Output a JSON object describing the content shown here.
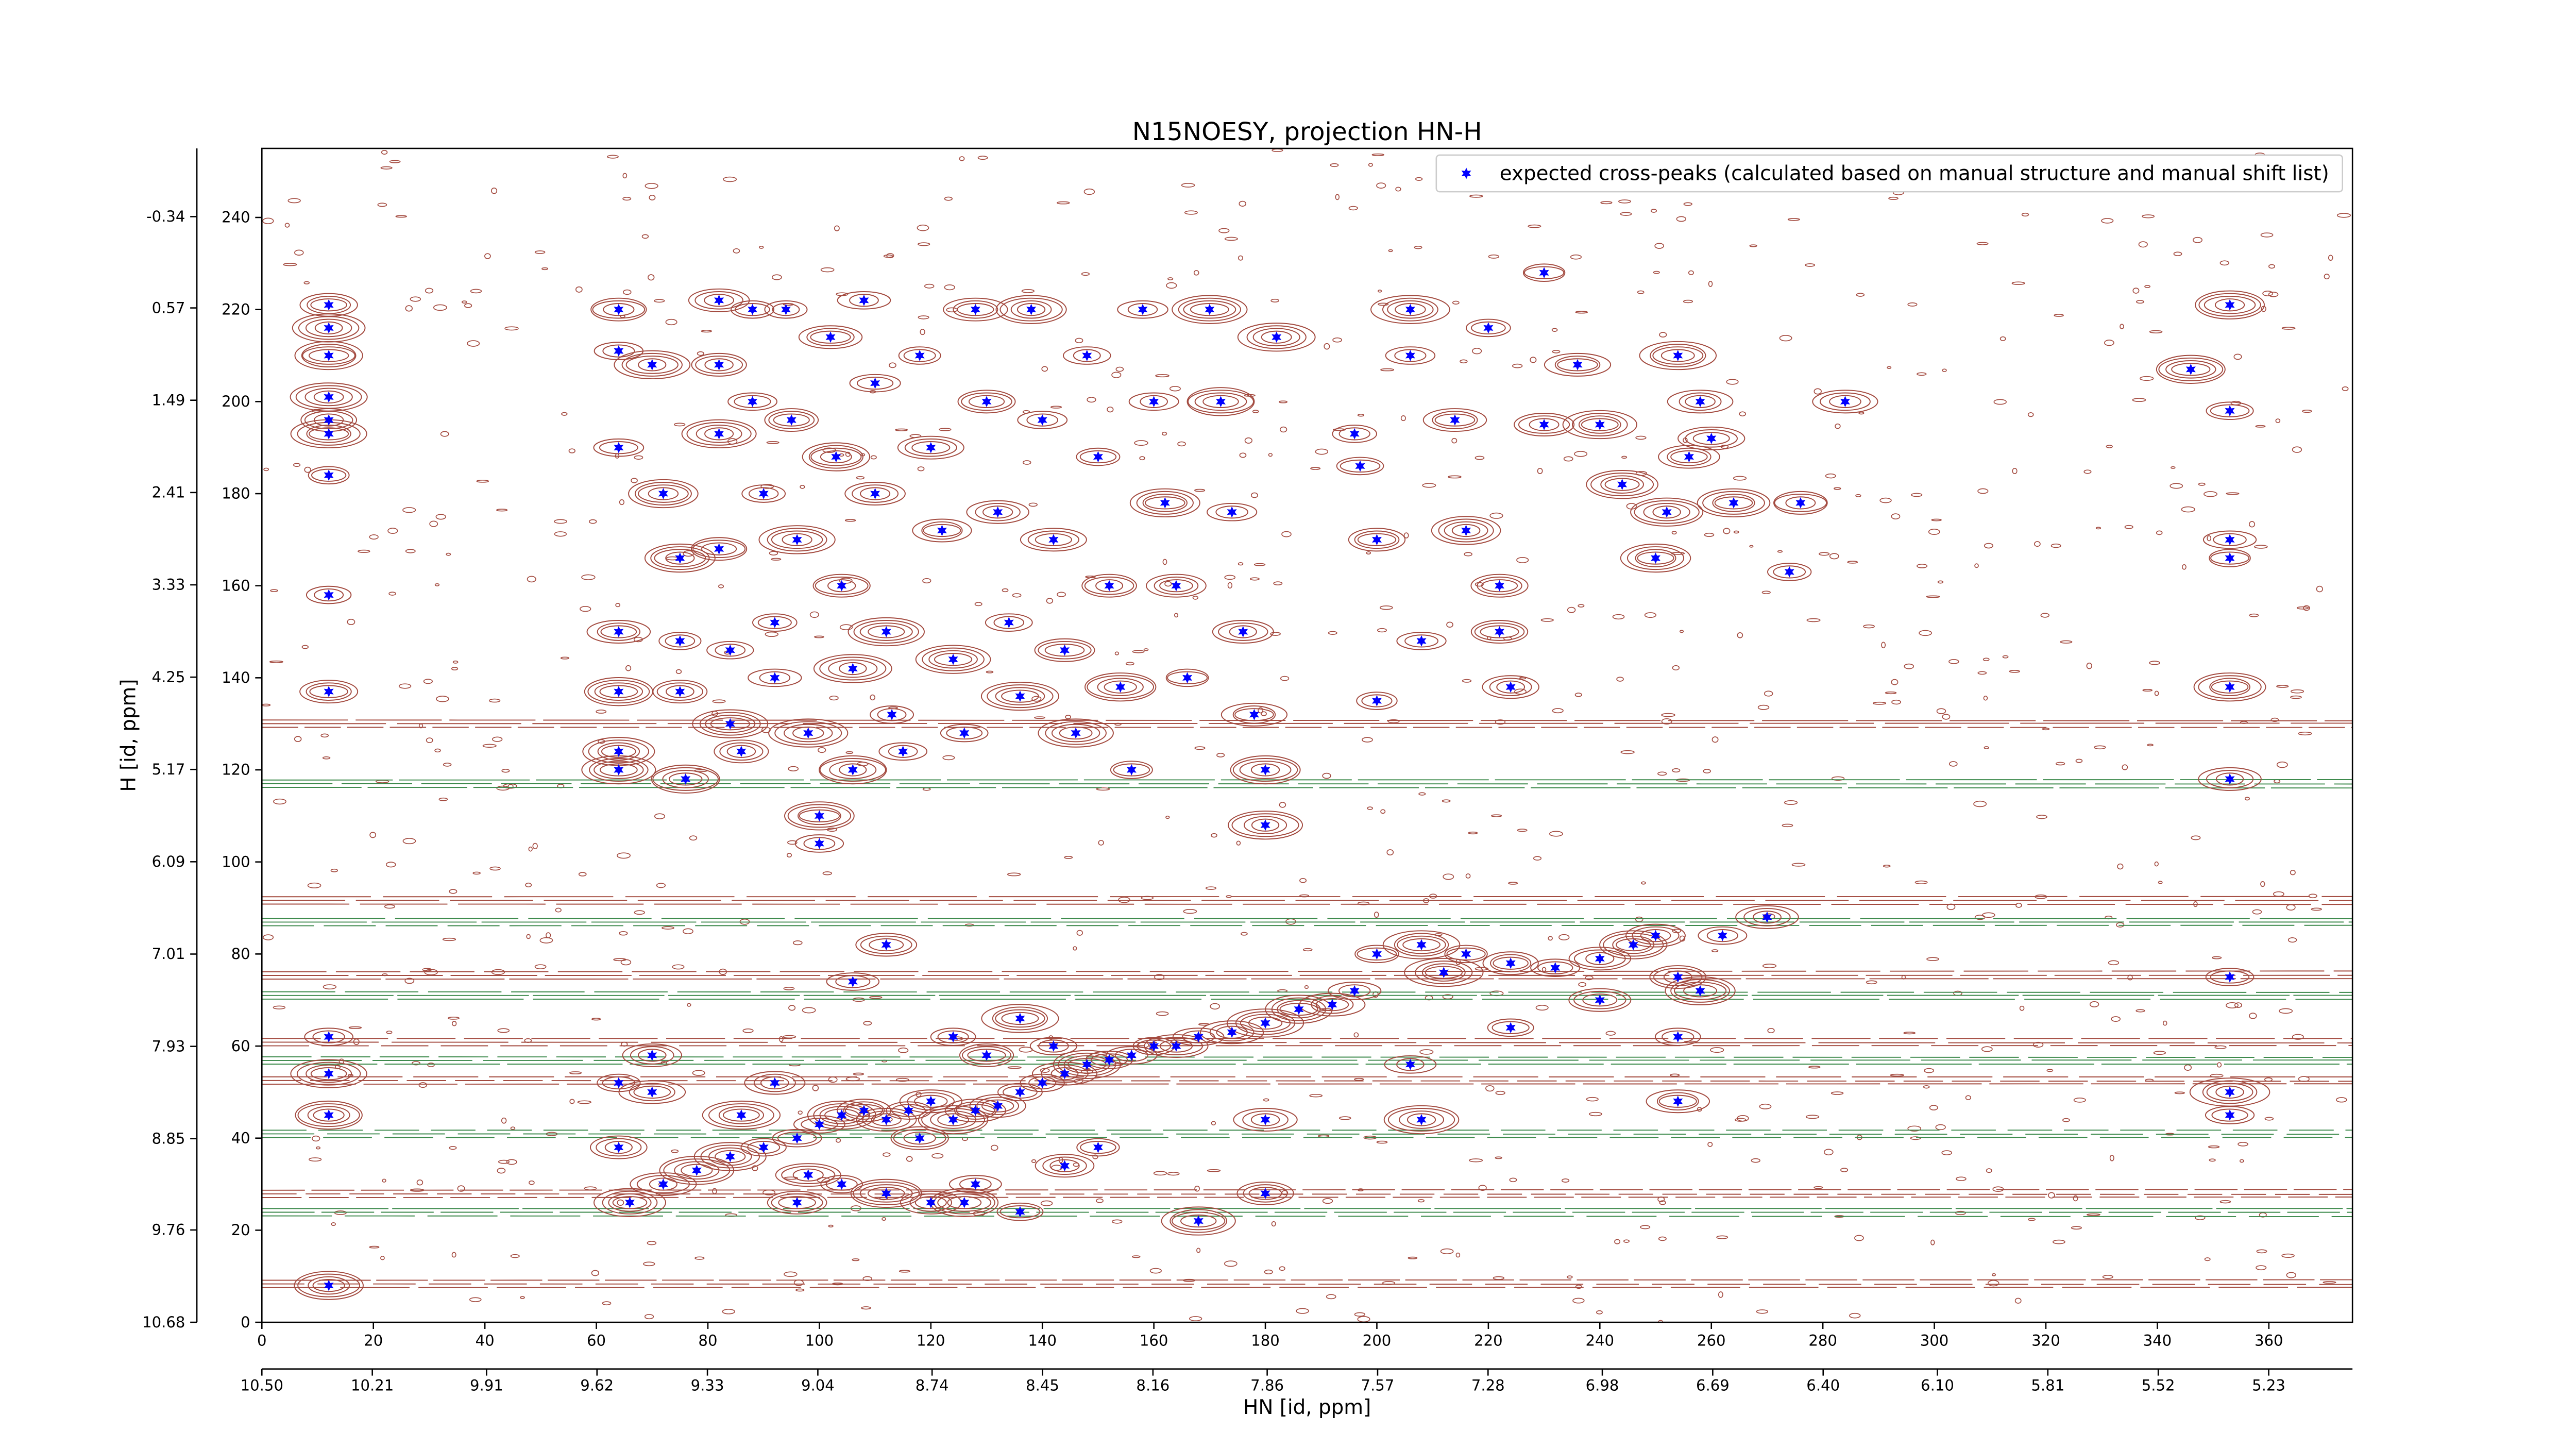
{
  "chart_data": {
    "type": "scatter",
    "title": "N15NOESY, projection HN-H",
    "xlabel": "HN [id, ppm]",
    "ylabel": "H [id, ppm]",
    "xlim": [
      0,
      375
    ],
    "ylim": [
      0,
      255
    ],
    "xticks": [
      0,
      20,
      40,
      60,
      80,
      100,
      120,
      140,
      160,
      180,
      200,
      220,
      240,
      260,
      280,
      300,
      320,
      340,
      360
    ],
    "yticks": [
      0,
      20,
      40,
      60,
      80,
      100,
      120,
      140,
      160,
      180,
      200,
      220,
      240
    ],
    "x2lim": [
      10.5,
      5.01
    ],
    "x2ticks": [
      {
        "value": 10.5,
        "label": "10.50"
      },
      10.21,
      9.91,
      9.62,
      9.33,
      9.04,
      8.74,
      8.45,
      8.16,
      7.86,
      7.57,
      7.28,
      6.98,
      6.69,
      {
        "value": 6.4,
        "label": "6.40"
      },
      {
        "value": 6.1,
        "label": "6.10"
      },
      5.81,
      5.52,
      5.23
    ],
    "y2lim": [
      10.68,
      -1.02
    ],
    "y2ticks": [
      10.68,
      9.76,
      8.85,
      7.93,
      7.01,
      6.09,
      5.17,
      4.25,
      3.33,
      2.41,
      1.49,
      0.57,
      -0.34
    ],
    "legend": "upper right",
    "grid": false,
    "series": [
      {
        "name": "expected cross-peaks (calculated based on manual structure and manual shift list)",
        "color": "#0000ff",
        "x": [
          12,
          12,
          12,
          12,
          12,
          12,
          12,
          12,
          12,
          12,
          12,
          12,
          12,
          64,
          64,
          64,
          64,
          64,
          64,
          64,
          64,
          64,
          70,
          72,
          75,
          75,
          75,
          76,
          82,
          82,
          82,
          82,
          84,
          84,
          86,
          88,
          88,
          90,
          92,
          92,
          94,
          95,
          96,
          98,
          100,
          100,
          102,
          103,
          104,
          106,
          106,
          108,
          110,
          110,
          112,
          113,
          115,
          118,
          120,
          122,
          124,
          126,
          128,
          130,
          132,
          134,
          136,
          138,
          140,
          142,
          144,
          146,
          148,
          150,
          152,
          154,
          156,
          158,
          160,
          162,
          164,
          166,
          170,
          172,
          174,
          176,
          178,
          180,
          180,
          182,
          196,
          197,
          200,
          200,
          206,
          206,
          208,
          214,
          216,
          220,
          222,
          222,
          224,
          230,
          230,
          236,
          240,
          244,
          250,
          252,
          254,
          256,
          258,
          260,
          264,
          274,
          276,
          284,
          346,
          353,
          353,
          353,
          353,
          353,
          353,
          353,
          353,
          353,
          70,
          70,
          66,
          72,
          78,
          84,
          90,
          96,
          100,
          104,
          108,
          112,
          116,
          120,
          124,
          128,
          132,
          136,
          140,
          144,
          148,
          152,
          156,
          160,
          164,
          168,
          174,
          180,
          186,
          192,
          196,
          200,
          208,
          212,
          216,
          224,
          232,
          240,
          246,
          250,
          254,
          258,
          262,
          270,
          112,
          106,
          124,
          130,
          136,
          142,
          98,
          104,
          112,
          120,
          128,
          136,
          144,
          150,
          86,
          92,
          180,
          180,
          208,
          206,
          254,
          254,
          240,
          224,
          168,
          126,
          118,
          96
        ],
        "y": [
          221,
          216,
          210,
          201,
          196,
          193,
          184,
          158,
          137,
          62,
          54,
          45,
          8,
          220,
          211,
          190,
          150,
          137,
          124,
          120,
          52,
          38,
          208,
          180,
          166,
          148,
          137,
          118,
          222,
          208,
          193,
          168,
          146,
          130,
          124,
          220,
          200,
          180,
          152,
          140,
          220,
          196,
          170,
          128,
          110,
          104,
          214,
          188,
          160,
          142,
          120,
          222,
          204,
          180,
          150,
          132,
          124,
          210,
          190,
          172,
          144,
          128,
          220,
          200,
          176,
          152,
          136,
          220,
          196,
          170,
          146,
          128,
          210,
          188,
          160,
          138,
          120,
          220,
          200,
          178,
          160,
          140,
          220,
          200,
          176,
          150,
          132,
          120,
          108,
          214,
          193,
          186,
          170,
          135,
          220,
          210,
          148,
          196,
          172,
          216,
          160,
          150,
          138,
          228,
          195,
          208,
          195,
          182,
          166,
          176,
          210,
          188,
          200,
          192,
          178,
          163,
          178,
          200,
          207,
          221,
          198,
          170,
          166,
          138,
          118,
          75,
          50,
          45,
          58,
          50,
          26,
          30,
          33,
          36,
          38,
          40,
          43,
          45,
          46,
          44,
          46,
          48,
          44,
          46,
          47,
          50,
          52,
          54,
          56,
          57,
          58,
          60,
          60,
          62,
          63,
          65,
          68,
          69,
          72,
          80,
          82,
          76,
          80,
          78,
          77,
          79,
          82,
          84,
          75,
          72,
          84,
          88,
          82,
          74,
          62,
          58,
          66,
          60,
          32,
          30,
          28,
          26,
          30,
          24,
          34,
          38,
          45,
          52,
          44,
          28,
          44,
          56,
          48,
          62,
          70,
          64,
          22,
          26,
          40,
          26
        ]
      }
    ]
  }
}
